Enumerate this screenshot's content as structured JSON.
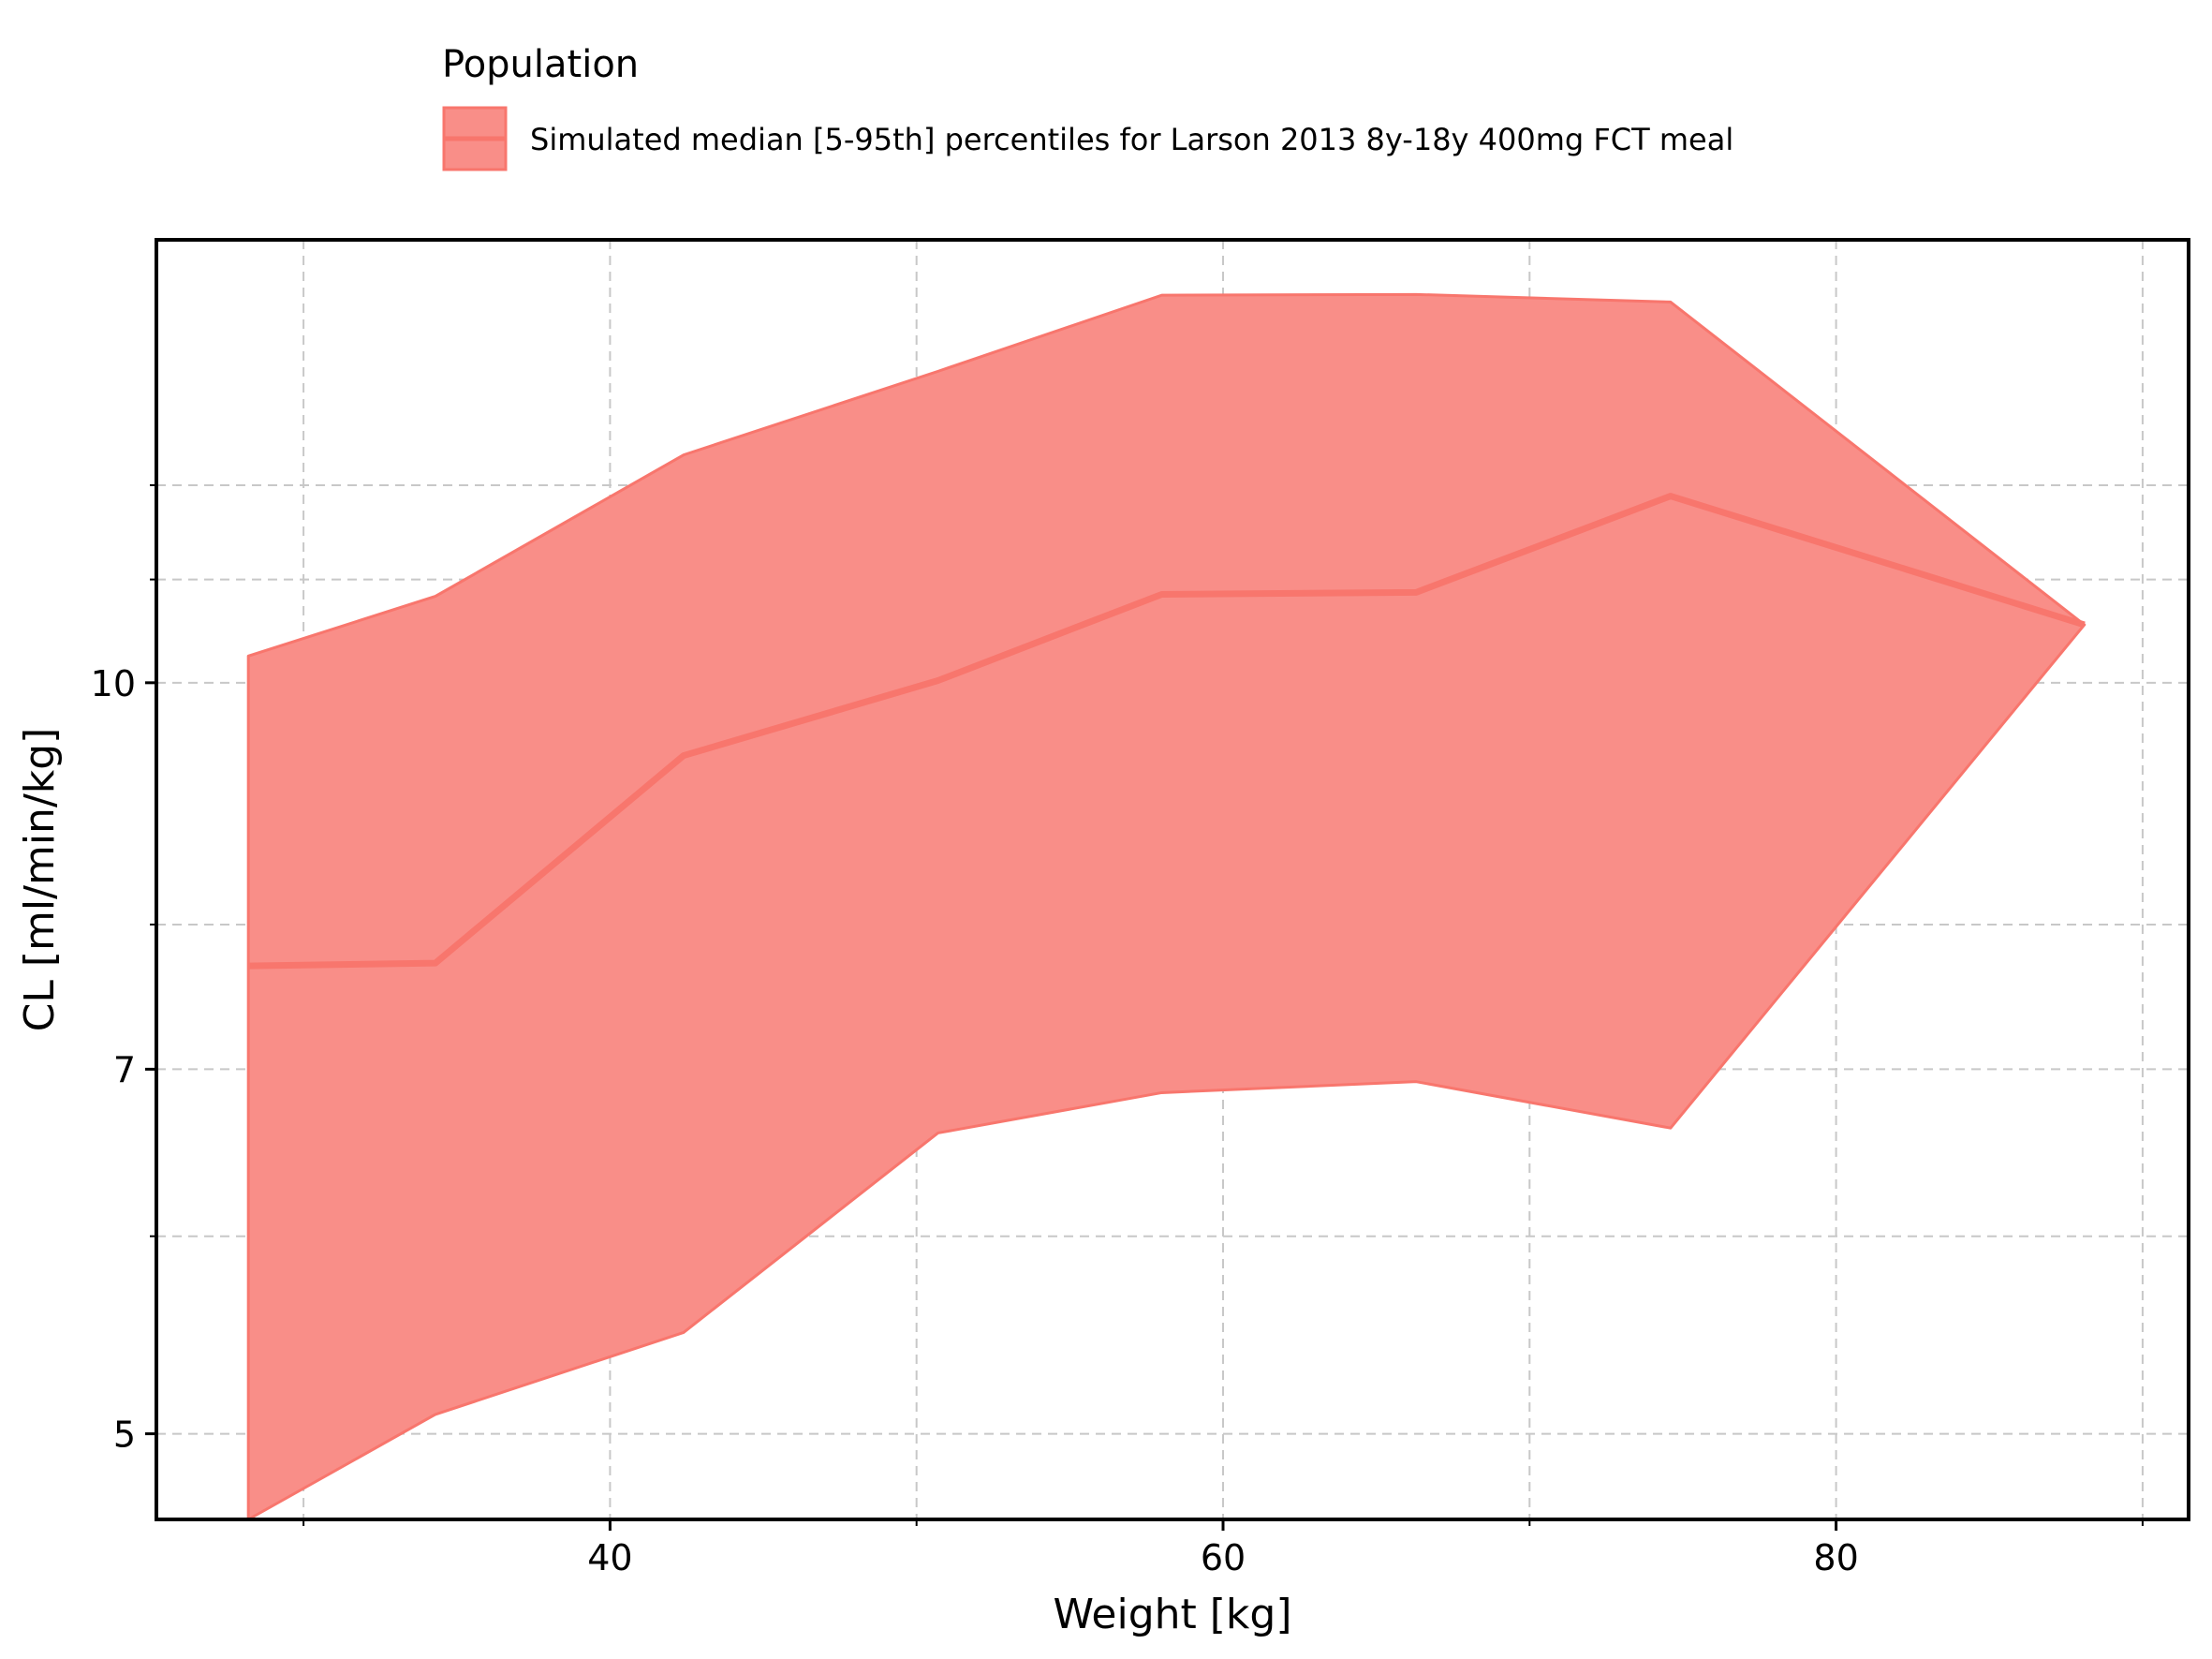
{
  "chart_data": {
    "type": "area",
    "xlabel": "Weight [kg]",
    "ylabel": "CL [ml/min/kg]",
    "yscale": "log",
    "xlim": [
      25.2,
      91.5
    ],
    "ylim": [
      4.62,
      15.05
    ],
    "x_major_ticks": [
      40,
      60,
      80
    ],
    "x_minor_ticks": [
      30,
      50,
      70,
      90
    ],
    "y_major_ticks": [
      5,
      7,
      10
    ],
    "y_major_tick_labels": [
      "5",
      "7",
      "10"
    ],
    "y_minor_ticks": [
      6,
      8,
      11,
      12
    ],
    "grid": "on",
    "legend": {
      "title": "Population",
      "placement": "top",
      "entries": [
        "Simulated median [5-95th] percentiles for Larson 2013 8y-18y 400mg FCT meal"
      ]
    },
    "series": [
      {
        "x": [
          28.2,
          34.3,
          42.4,
          50.7,
          58.0,
          66.3,
          74.6,
          88.1
        ],
        "median": [
          7.7,
          7.72,
          9.35,
          10.02,
          10.85,
          10.87,
          11.88,
          10.55
        ],
        "lower": [
          4.62,
          5.09,
          5.49,
          6.6,
          6.85,
          6.92,
          6.63,
          10.55
        ],
        "upper": [
          10.25,
          10.83,
          12.34,
          13.33,
          14.3,
          14.31,
          14.21,
          10.55
        ]
      }
    ],
    "colors": {
      "fill": "#f98e88",
      "line": "#f8766d",
      "grid": "#c8c8c8"
    }
  }
}
